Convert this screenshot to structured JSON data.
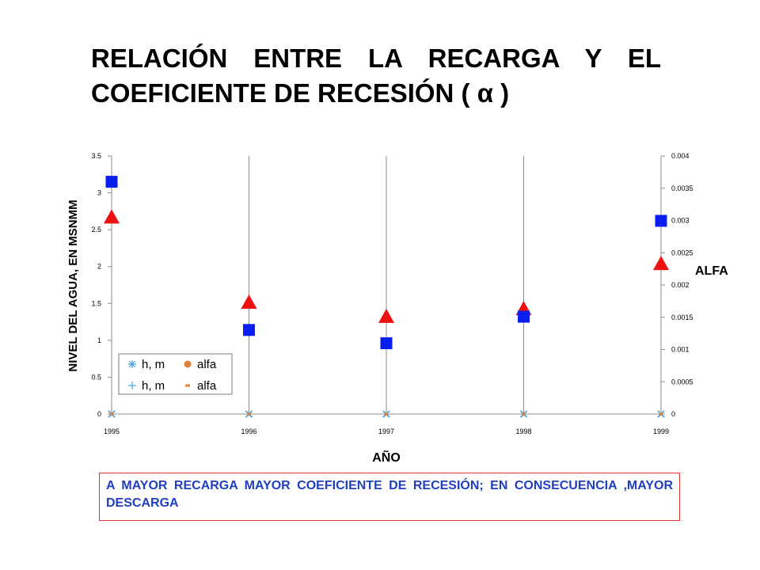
{
  "title_line1": "RELACIÓN ENTRE LA RECARGA Y EL",
  "title_line2": "COEFICIENTE DE RECESIÓN ( α )",
  "conclusion_text": "A MAYOR RECARGA MAYOR COEFICIENTE DE RECESIÓN; EN CONSECUENCIA ,MAYOR DESCARGA",
  "chart_data": {
    "type": "scatter",
    "xlabel": "AÑO",
    "ylabel": "NIVEL DEL AGUA, EN MSNMM",
    "y2label": "ALFA",
    "xlim": [
      1995,
      1999
    ],
    "ylim": [
      0,
      3.5
    ],
    "y2lim": [
      0,
      0.004
    ],
    "x_ticks": [
      "1995",
      "1996",
      "1997",
      "1998",
      "1999"
    ],
    "y_ticks": [
      "0",
      "0.5",
      "1",
      "1.5",
      "2",
      "2.5",
      "3",
      "3.5"
    ],
    "y2_ticks": [
      "0",
      "0.0005",
      "0.001",
      "0.0015",
      "0.002",
      "0.0025",
      "0.003",
      "0.0035",
      "0.004"
    ],
    "grid": "vertical",
    "legend_position": "bottom-left",
    "series": [
      {
        "name": "h, m",
        "axis": "left",
        "marker": "square",
        "color": "#0a1ef0",
        "points": [
          [
            1995,
            3.15
          ],
          [
            1996,
            1.14
          ],
          [
            1997,
            0.96
          ],
          [
            1998,
            1.32
          ],
          [
            1999,
            2.62
          ]
        ]
      },
      {
        "name": "alfa",
        "axis": "right",
        "marker": "triangle",
        "color": "#ee1111",
        "points": [
          [
            1995,
            0.00305
          ],
          [
            1996,
            0.00173
          ],
          [
            1997,
            0.00151
          ],
          [
            1998,
            0.00163
          ],
          [
            1999,
            0.00233
          ]
        ]
      },
      {
        "name": "h, m",
        "axis": "left",
        "marker": "x",
        "color": "#4aa3d8",
        "points": [
          [
            1995,
            0
          ],
          [
            1996,
            0
          ],
          [
            1997,
            0
          ],
          [
            1998,
            0
          ],
          [
            1999,
            0
          ]
        ]
      },
      {
        "name": "alfa",
        "axis": "right",
        "marker": "circle",
        "color": "#e0803a",
        "points": [
          [
            1995,
            0
          ],
          [
            1996,
            0
          ],
          [
            1997,
            0
          ],
          [
            1998,
            0
          ],
          [
            1999,
            0
          ]
        ]
      }
    ],
    "legend": [
      {
        "label": "h, m",
        "marker": "asterisk",
        "color": "#4aa3d8"
      },
      {
        "label": "alfa",
        "marker": "circle",
        "color": "#e0803a"
      },
      {
        "label": "h, m",
        "marker": "plus",
        "color": "#4aa3d8"
      },
      {
        "label": "alfa",
        "marker": "dash",
        "color": "#e0803a"
      }
    ]
  }
}
